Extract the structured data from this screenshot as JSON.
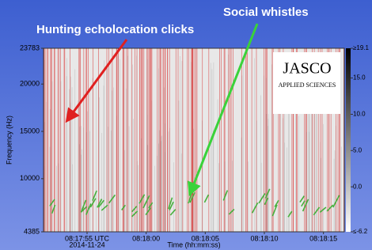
{
  "chart_data": {
    "type": "spectrogram",
    "annotations": [
      "Social whistles",
      "Hunting echolocation clicks"
    ],
    "ylabel": "Frequency (Hz)",
    "xlabel": "Time (hh:mm:ss)",
    "ylim": [
      4385,
      23783
    ],
    "yticks": [
      23783,
      20000,
      15000,
      10000,
      4385
    ],
    "xticks": [
      "08:17:55 UTC",
      "08:18:00",
      "08:18:05",
      "08:18:10",
      "08:18:15"
    ],
    "date": "2014-11-24",
    "clim": [
      -6.2,
      19.1
    ],
    "cticks": [
      {
        "value": 19.1,
        "label": "≥19.1"
      },
      {
        "value": 15,
        "label": "15.0"
      },
      {
        "value": 10,
        "label": "10.0"
      },
      {
        "value": 5,
        "label": "5.0"
      },
      {
        "value": 0,
        "label": "0.0"
      },
      {
        "value": -6.2,
        "label": "≤-6.2"
      }
    ],
    "logo": {
      "name": "JASCO",
      "tagline": "APPLIED SCIENCES"
    }
  }
}
